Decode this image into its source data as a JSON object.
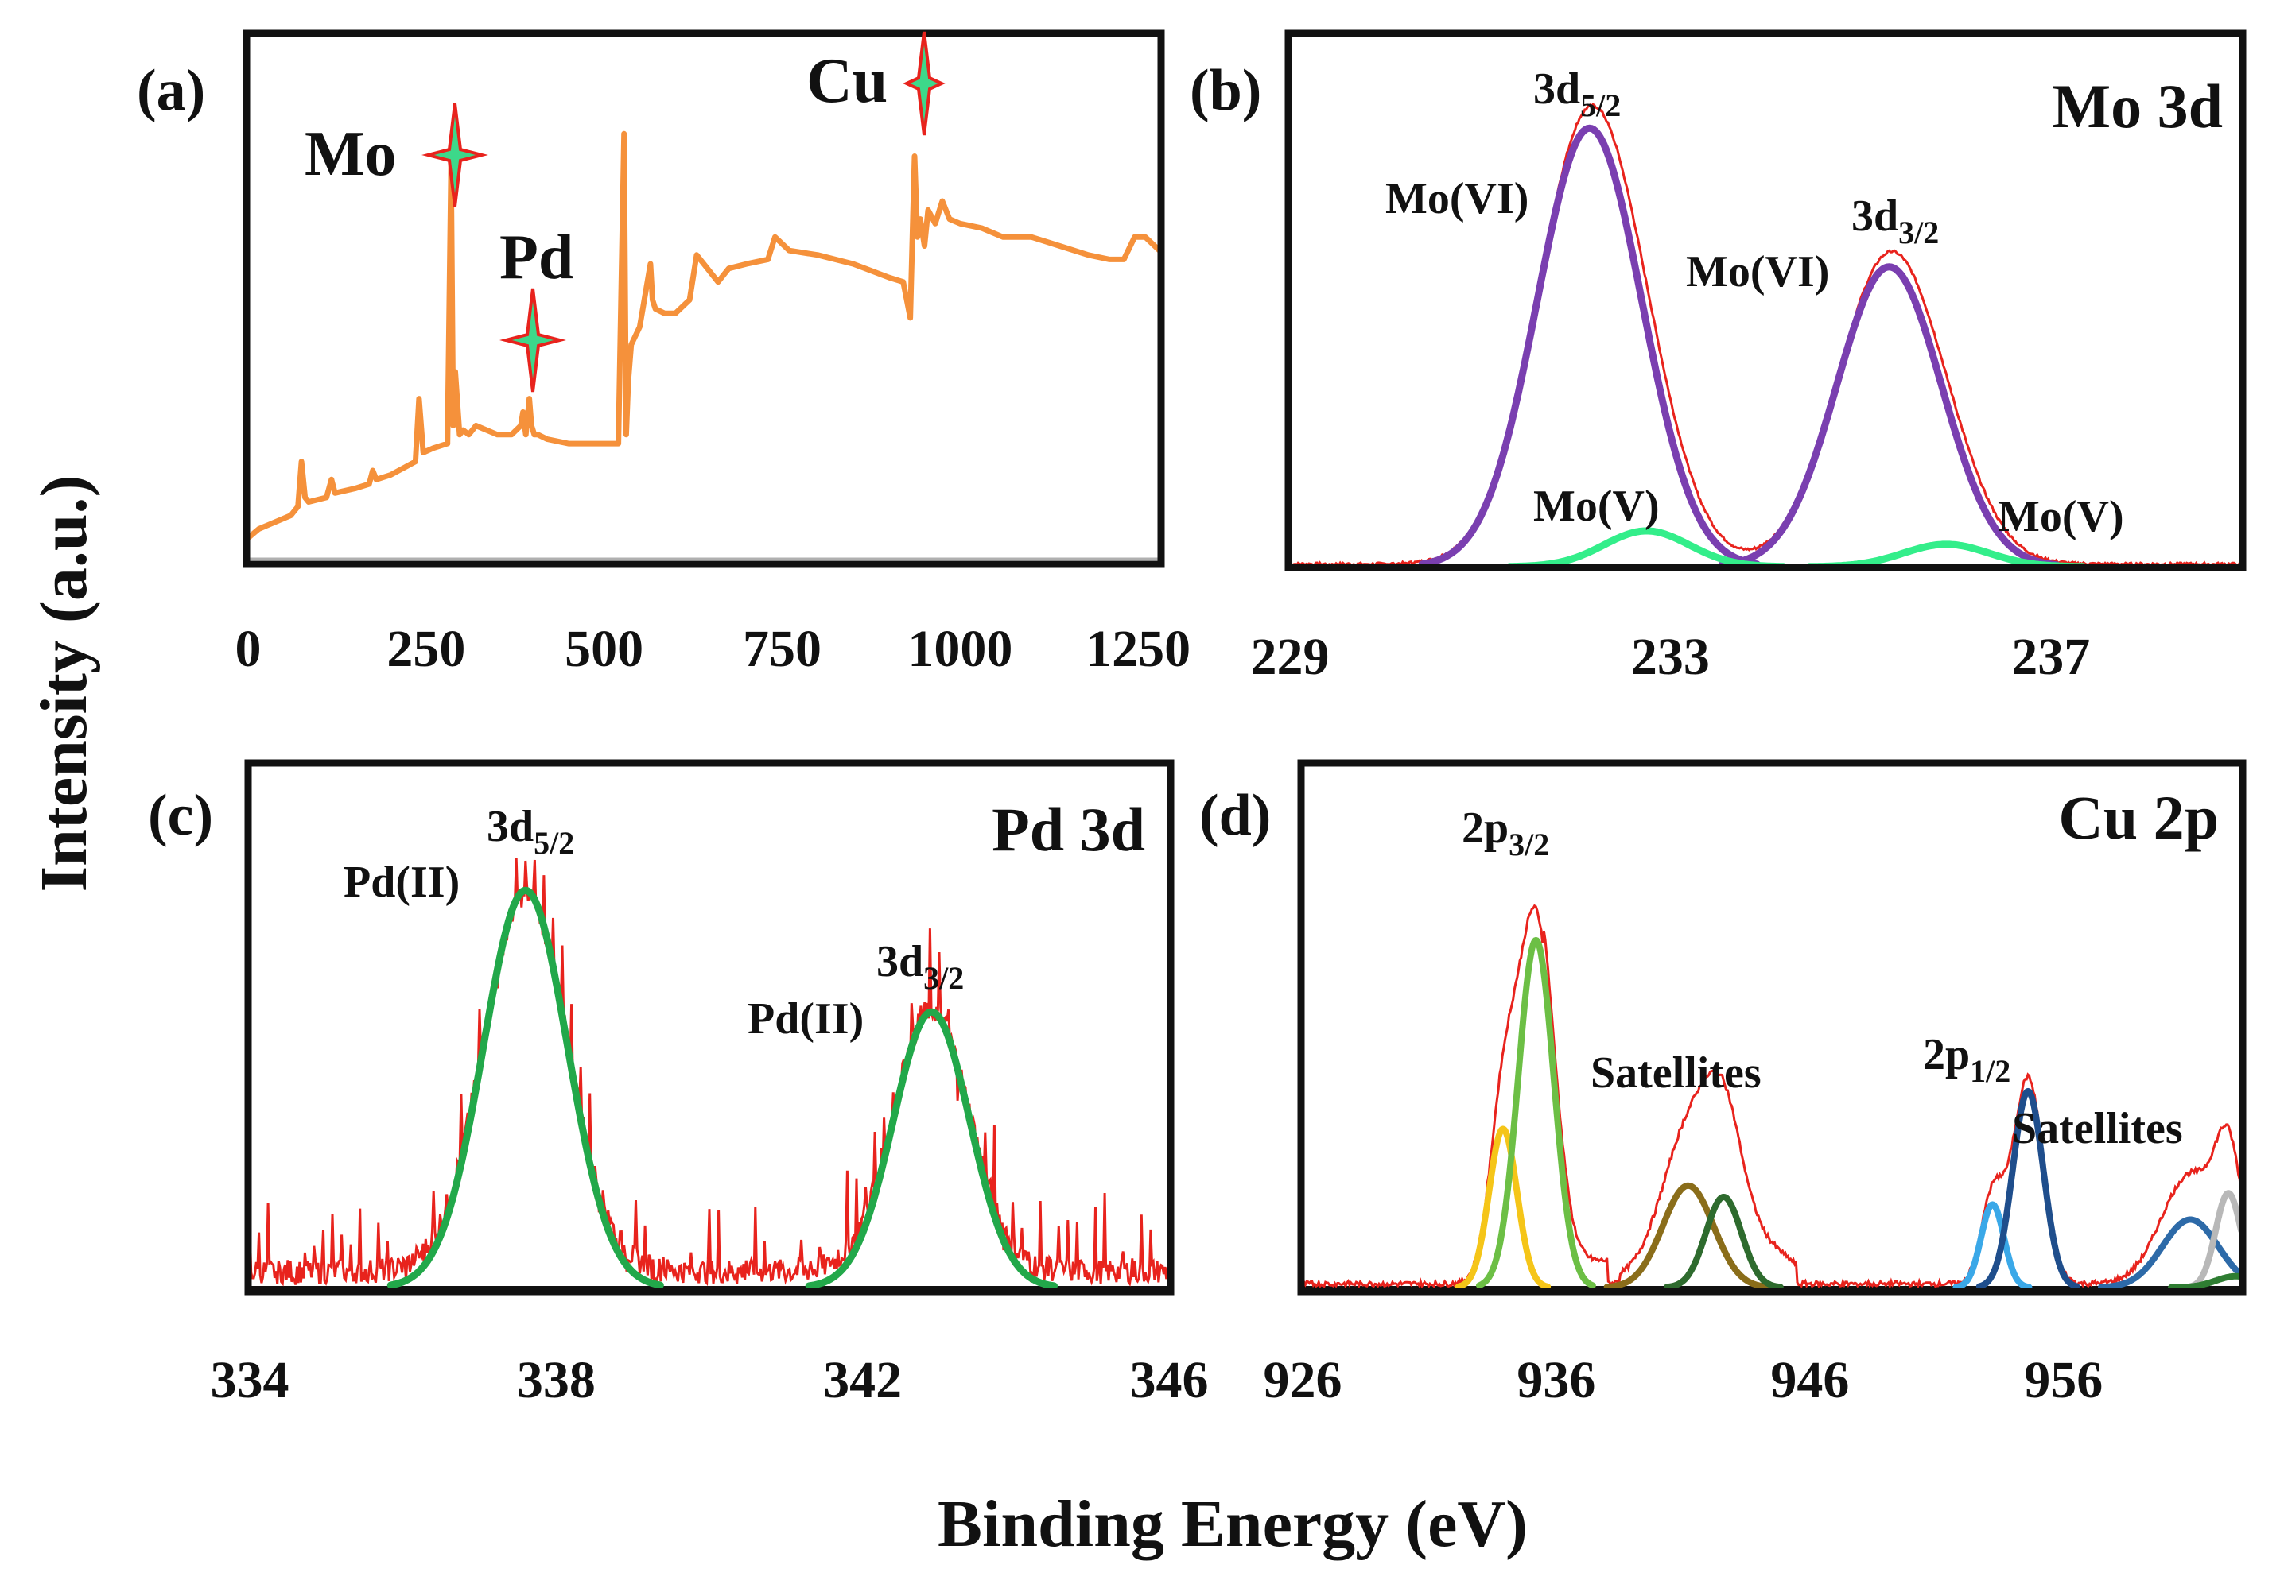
{
  "figure": {
    "ylabel": "Intensity (a.u.)",
    "xlabel": "Binding Energy (eV)"
  },
  "chart_data": [
    {
      "id": "a",
      "type": "line",
      "panel_label": "(a)",
      "title": "",
      "xlim": [
        0,
        1280
      ],
      "ylim": [
        0,
        100
      ],
      "xticks": [
        0,
        250,
        500,
        750,
        1000,
        1250
      ],
      "xtick_labels": [
        "0",
        "250",
        "500",
        "750",
        "1000",
        "1250"
      ],
      "series": [
        {
          "name": "",
          "color": "#f5913b",
          "x": [
            0,
            15,
            30,
            60,
            70,
            75,
            80,
            85,
            110,
            117,
            122,
            150,
            170,
            175,
            180,
            200,
            235,
            240,
            246,
            260,
            280,
            285,
            288,
            291,
            297,
            302,
            310,
            320,
            350,
            370,
            383,
            386,
            390,
            395,
            398,
            402,
            407,
            420,
            450,
            480,
            520,
            528,
            531,
            534,
            538,
            550,
            565,
            568,
            572,
            585,
            600,
            620,
            630,
            650,
            660,
            675,
            700,
            730,
            740,
            760,
            800,
            850,
            900,
            920,
            930,
            936,
            940,
            944,
            950,
            955,
            965,
            975,
            985,
            1000,
            1030,
            1060,
            1100,
            1140,
            1180,
            1210,
            1230,
            1245,
            1260,
            1280
          ],
          "y": [
            5,
            7,
            8,
            10,
            12,
            22,
            14,
            13,
            14,
            18,
            15,
            16,
            17,
            20,
            18,
            19,
            22,
            36,
            24,
            25,
            26,
            88,
            30,
            42,
            28,
            29,
            28,
            30,
            28,
            28,
            30,
            33,
            28,
            36,
            30,
            28,
            28,
            27,
            26,
            26,
            26,
            95,
            28,
            40,
            48,
            52,
            66,
            58,
            56,
            55,
            55,
            58,
            68,
            64,
            62,
            65,
            66,
            67,
            72,
            69,
            68,
            66,
            63,
            62,
            54,
            90,
            72,
            76,
            70,
            78,
            75,
            80,
            76,
            75,
            74,
            72,
            72,
            70,
            68,
            67,
            67,
            72,
            72,
            69
          ]
        }
      ],
      "annotations": [
        {
          "text": "Mo",
          "x": 285
        },
        {
          "text": "Pd",
          "x": 398
        },
        {
          "text": "Cu",
          "x": 936
        }
      ]
    },
    {
      "id": "b",
      "type": "line",
      "panel_label": "(b)",
      "title": "Mo 3d",
      "xlim": [
        229,
        239
      ],
      "ylim": [
        0,
        100
      ],
      "xticks": [
        229,
        233,
        237
      ],
      "xtick_labels": [
        "229",
        "233",
        "237"
      ],
      "series": [
        {
          "name": "",
          "color": "#e8231d",
          "style": "raw"
        },
        {
          "name": "",
          "color": "#7a3fb0",
          "peaks": [
            {
              "center": 232.15,
              "height": 98,
              "sigma": 0.55
            },
            {
              "center": 235.3,
              "height": 67,
              "sigma": 0.55
            }
          ]
        },
        {
          "name": "",
          "color": "#33ee8a",
          "peaks": [
            {
              "center": 232.75,
              "height": 8,
              "sigma": 0.45
            },
            {
              "center": 235.9,
              "height": 5,
              "sigma": 0.45
            }
          ]
        }
      ],
      "annotations": [
        {
          "text": "3d",
          "sub": "5/2"
        },
        {
          "text": "Mo(VI)"
        },
        {
          "text": "3d",
          "sub": "3/2"
        },
        {
          "text": "Mo(VI)"
        },
        {
          "text": "Mo(V)"
        },
        {
          "text": "Mo(V)"
        }
      ]
    },
    {
      "id": "c",
      "type": "line",
      "panel_label": "(c)",
      "title": "Pd 3d",
      "xlim": [
        334,
        346
      ],
      "ylim": [
        0,
        100
      ],
      "xticks": [
        334,
        338,
        342,
        346
      ],
      "xtick_labels": [
        "334",
        "338",
        "342",
        "346"
      ],
      "series": [
        {
          "name": "",
          "color": "#e8231d",
          "style": "raw"
        },
        {
          "name": "",
          "color": "#22a84a",
          "peaks": [
            {
              "center": 337.6,
              "height": 98,
              "sigma": 0.55
            },
            {
              "center": 342.9,
              "height": 68,
              "sigma": 0.5
            }
          ]
        }
      ],
      "annotations": [
        {
          "text": "3d",
          "sub": "5/2"
        },
        {
          "text": "Pd(II)"
        },
        {
          "text": "3d",
          "sub": "3/2"
        },
        {
          "text": "Pd(II)"
        }
      ]
    },
    {
      "id": "d",
      "type": "line",
      "panel_label": "(d)",
      "title": "Cu 2p",
      "xlim": [
        926,
        963
      ],
      "ylim": [
        0,
        100
      ],
      "xticks": [
        926,
        936,
        946,
        956
      ],
      "xtick_labels": [
        "926",
        "936",
        "946",
        "956"
      ],
      "series": [
        {
          "name": "",
          "color": "#e8231d",
          "style": "raw"
        },
        {
          "name": "",
          "color": "#f5c518",
          "peaks": [
            {
              "center": 933.9,
              "height": 42,
              "sigma": 0.55
            }
          ]
        },
        {
          "name": "",
          "color": "#6cbf45",
          "peaks": [
            {
              "center": 935.2,
              "height": 92,
              "sigma": 0.7
            }
          ]
        },
        {
          "name": "",
          "color": "#8a6d1a",
          "peaks": [
            {
              "center": 941.2,
              "height": 27,
              "sigma": 1.0
            }
          ]
        },
        {
          "name": "",
          "color": "#2e6b2e",
          "peaks": [
            {
              "center": 942.6,
              "height": 24,
              "sigma": 0.7
            }
          ]
        },
        {
          "name": "",
          "color": "#3aa8e8",
          "peaks": [
            {
              "center": 953.2,
              "height": 22,
              "sigma": 0.45
            }
          ]
        },
        {
          "name": "",
          "color": "#1f4e8c",
          "peaks": [
            {
              "center": 954.6,
              "height": 52,
              "sigma": 0.6
            }
          ]
        },
        {
          "name": "",
          "color": "#2d6aa8",
          "peaks": [
            {
              "center": 961.0,
              "height": 18,
              "sigma": 1.1
            }
          ]
        },
        {
          "name": "",
          "color": "#b8b8b8",
          "peaks": [
            {
              "center": 962.5,
              "height": 25,
              "sigma": 0.5
            }
          ]
        },
        {
          "name": "",
          "color": "#2e7d32",
          "peaks": [
            {
              "center": 962.8,
              "height": 3,
              "sigma": 0.8
            }
          ]
        }
      ],
      "annotations": [
        {
          "text": "2p",
          "sub": "3/2"
        },
        {
          "text": "Satellites"
        },
        {
          "text": "2p",
          "sub": "1/2"
        },
        {
          "text": "Satellites"
        }
      ]
    }
  ]
}
